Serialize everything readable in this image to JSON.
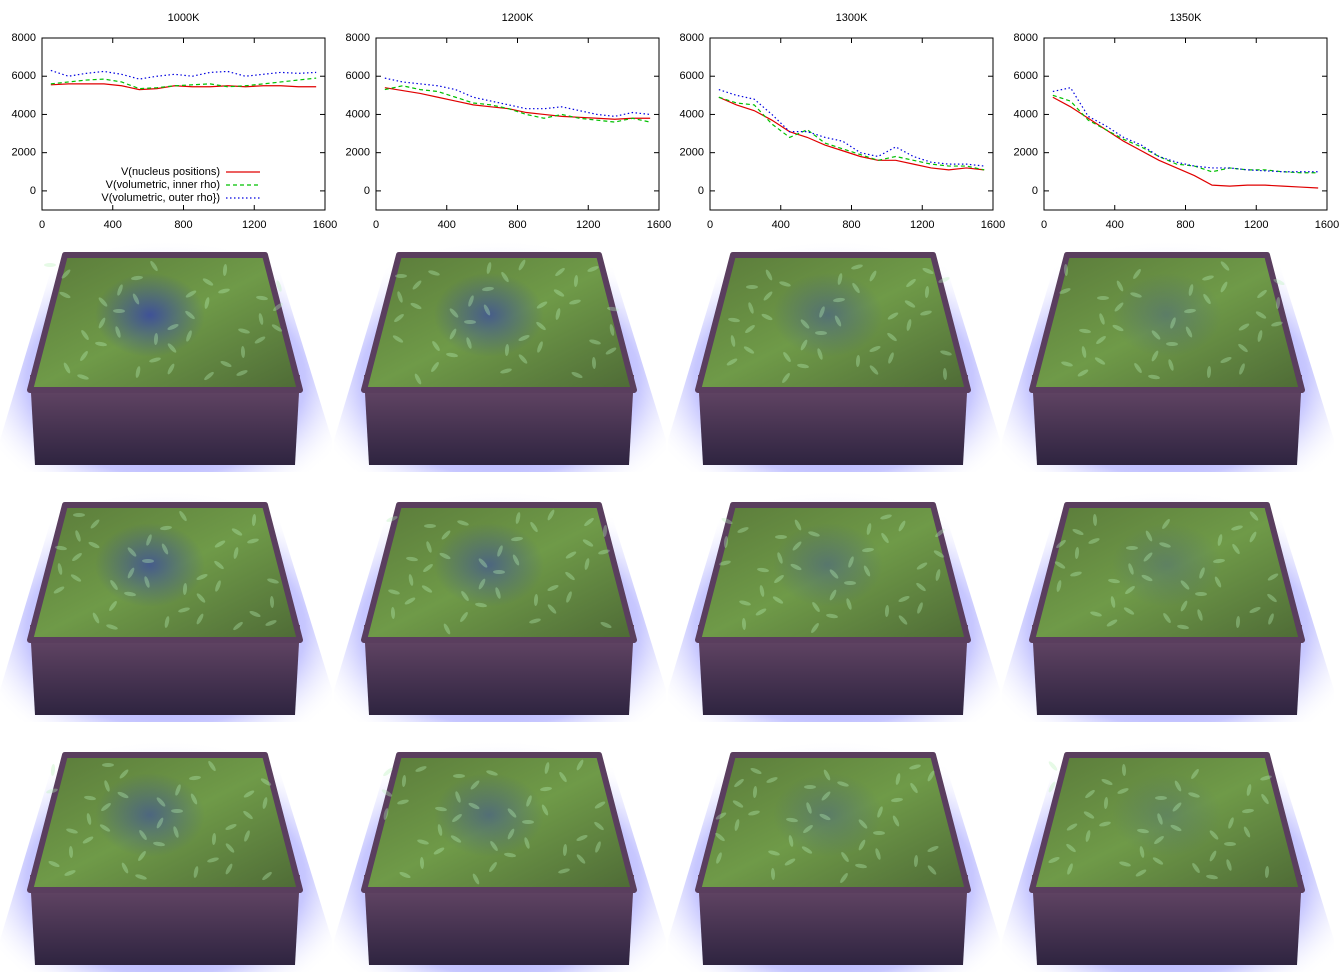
{
  "chart_data": [
    {
      "type": "line",
      "title": "1000K",
      "x": [
        50,
        150,
        250,
        350,
        450,
        550,
        650,
        750,
        850,
        950,
        1050,
        1150,
        1250,
        1350,
        1450,
        1550
      ],
      "series": [
        {
          "name": "V(nucleus positions)",
          "color": "#e00000",
          "dash": "solid",
          "values": [
            5550,
            5600,
            5600,
            5600,
            5500,
            5300,
            5350,
            5500,
            5450,
            5450,
            5500,
            5450,
            5500,
            5500,
            5450,
            5450
          ]
        },
        {
          "name": "V(volumetric, inner rho)",
          "color": "#00c000",
          "dash": "dashed",
          "values": [
            5600,
            5700,
            5800,
            5850,
            5700,
            5350,
            5400,
            5500,
            5550,
            5600,
            5450,
            5500,
            5600,
            5700,
            5800,
            5900
          ]
        },
        {
          "name": "V(volumetric, outer rho})",
          "color": "#0000e0",
          "dash": "dotted",
          "values": [
            6300,
            6000,
            6150,
            6250,
            6100,
            5850,
            6000,
            6100,
            6000,
            6200,
            6250,
            6000,
            6100,
            6200,
            6150,
            6200
          ]
        }
      ],
      "xlim": [
        0,
        1600
      ],
      "xticks": [
        0,
        400,
        800,
        1200,
        1600
      ],
      "ylim": [
        -1000,
        8000
      ],
      "yticks": [
        0,
        2000,
        4000,
        6000,
        8000
      ],
      "legend": "bottom-center"
    },
    {
      "type": "line",
      "title": "1200K",
      "x": [
        50,
        150,
        250,
        350,
        450,
        550,
        650,
        750,
        850,
        950,
        1050,
        1150,
        1250,
        1350,
        1450,
        1550
      ],
      "series": [
        {
          "color": "#e00000",
          "dash": "solid",
          "values": [
            5400,
            5250,
            5100,
            4900,
            4700,
            4500,
            4400,
            4300,
            4100,
            4000,
            3900,
            3850,
            3800,
            3750,
            3800,
            3800
          ]
        },
        {
          "color": "#00c000",
          "dash": "dashed",
          "values": [
            5300,
            5500,
            5300,
            5200,
            4900,
            4600,
            4500,
            4300,
            4000,
            3800,
            4000,
            3800,
            3700,
            3600,
            3800,
            3600
          ]
        },
        {
          "color": "#0000e0",
          "dash": "dotted",
          "values": [
            5900,
            5700,
            5600,
            5500,
            5300,
            4900,
            4700,
            4500,
            4300,
            4300,
            4400,
            4200,
            4000,
            3900,
            4100,
            4000
          ]
        }
      ],
      "xlim": [
        0,
        1600
      ],
      "xticks": [
        0,
        400,
        800,
        1200,
        1600
      ],
      "ylim": [
        -1000,
        8000
      ],
      "yticks": [
        0,
        2000,
        4000,
        6000,
        8000
      ]
    },
    {
      "type": "line",
      "title": "1300K",
      "x": [
        50,
        150,
        250,
        350,
        450,
        550,
        650,
        750,
        850,
        950,
        1050,
        1150,
        1250,
        1350,
        1450,
        1550
      ],
      "series": [
        {
          "color": "#e00000",
          "dash": "solid",
          "values": [
            4900,
            4500,
            4200,
            3700,
            3100,
            2800,
            2400,
            2100,
            1800,
            1600,
            1600,
            1400,
            1200,
            1100,
            1200,
            1100
          ]
        },
        {
          "color": "#00c000",
          "dash": "dashed",
          "values": [
            4900,
            4600,
            4500,
            3500,
            2800,
            3200,
            2500,
            2200,
            1900,
            1600,
            1800,
            1600,
            1400,
            1300,
            1300,
            1100
          ]
        },
        {
          "color": "#0000e0",
          "dash": "dotted",
          "values": [
            5300,
            5000,
            4800,
            4000,
            3100,
            3100,
            2800,
            2600,
            2000,
            1800,
            2300,
            1800,
            1500,
            1400,
            1400,
            1300
          ]
        }
      ],
      "xlim": [
        0,
        1600
      ],
      "xticks": [
        0,
        400,
        800,
        1200,
        1600
      ],
      "ylim": [
        -1000,
        8000
      ],
      "yticks": [
        0,
        2000,
        4000,
        6000,
        8000
      ]
    },
    {
      "type": "line",
      "title": "1350K",
      "x": [
        50,
        150,
        250,
        350,
        450,
        550,
        650,
        750,
        850,
        950,
        1050,
        1150,
        1250,
        1350,
        1450,
        1550
      ],
      "series": [
        {
          "color": "#e00000",
          "dash": "solid",
          "values": [
            4900,
            4400,
            3800,
            3200,
            2600,
            2100,
            1600,
            1200,
            800,
            300,
            250,
            300,
            300,
            250,
            200,
            150
          ]
        },
        {
          "color": "#00c000",
          "dash": "dashed",
          "values": [
            5000,
            4700,
            3700,
            3200,
            2700,
            2300,
            1800,
            1400,
            1300,
            1000,
            1200,
            1100,
            1100,
            1000,
            950,
            950
          ]
        },
        {
          "color": "#0000e0",
          "dash": "dotted",
          "values": [
            5200,
            5400,
            3900,
            3400,
            2800,
            2400,
            1800,
            1500,
            1300,
            1200,
            1200,
            1100,
            1050,
            1000,
            1000,
            1000
          ]
        }
      ],
      "xlim": [
        0,
        1600
      ],
      "xticks": [
        0,
        400,
        800,
        1200,
        1600
      ],
      "ylim": [
        -1000,
        8000
      ],
      "yticks": [
        0,
        2000,
        4000,
        6000,
        8000
      ]
    }
  ]
}
